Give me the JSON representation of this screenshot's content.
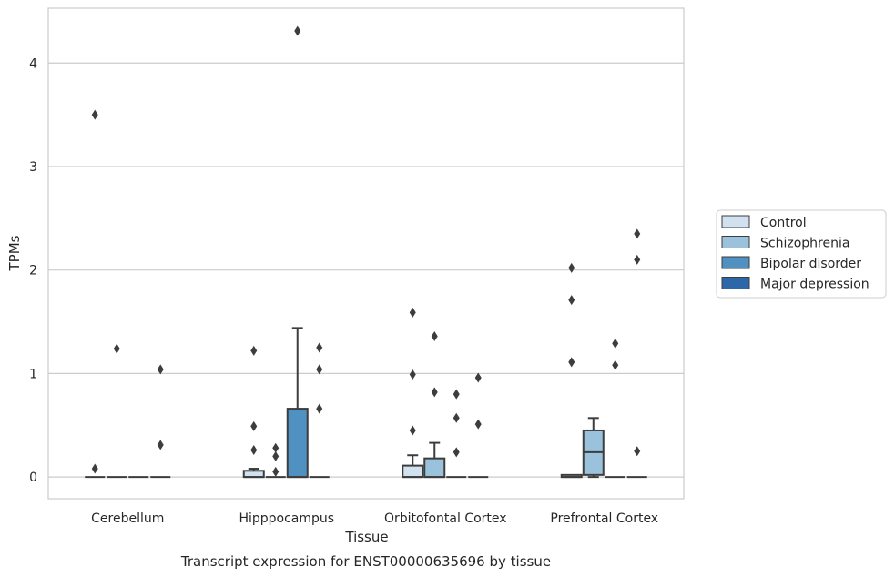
{
  "chart_data": {
    "type": "box",
    "title": "Transcript expression for ENST00000635696 by tissue",
    "xlabel": "Tissue",
    "ylabel": "TPMs",
    "ylim": [
      -0.21,
      4.53
    ],
    "yticks": [
      0,
      1,
      2,
      3,
      4
    ],
    "grid": "horizontal",
    "legend_position": "right",
    "categories": [
      "Cerebellum",
      "Hipppocampus",
      "Orbitofontal Cortex",
      "Prefrontal Cortex"
    ],
    "series": [
      {
        "name": "Control",
        "color": "#d1e1ef",
        "boxes": [
          {
            "category": "Cerebellum",
            "whislo": 0,
            "q1": 0,
            "med": 0,
            "q3": 0,
            "whishi": 0,
            "fliers": [
              0.08,
              3.5
            ]
          },
          {
            "category": "Hipppocampus",
            "whislo": 0,
            "q1": 0,
            "med": 0,
            "q3": 0.06,
            "whishi": 0.08,
            "fliers": [
              0.26,
              0.49,
              1.22
            ]
          },
          {
            "category": "Orbitofontal Cortex",
            "whislo": 0,
            "q1": 0,
            "med": 0,
            "q3": 0.11,
            "whishi": 0.21,
            "fliers": [
              0.45,
              0.99,
              1.59
            ]
          },
          {
            "category": "Prefrontal Cortex",
            "whislo": 0,
            "q1": 0,
            "med": 0,
            "q3": 0.02,
            "whishi": 0.02,
            "fliers": [
              1.11,
              1.71,
              2.02
            ]
          }
        ]
      },
      {
        "name": "Schizophrenia",
        "color": "#9ac2dc",
        "boxes": [
          {
            "category": "Cerebellum",
            "whislo": 0,
            "q1": 0,
            "med": 0,
            "q3": 0,
            "whishi": 0,
            "fliers": [
              1.24
            ]
          },
          {
            "category": "Hipppocampus",
            "whislo": 0,
            "q1": 0,
            "med": 0,
            "q3": 0,
            "whishi": 0,
            "fliers": [
              0.05,
              0.2,
              0.28
            ]
          },
          {
            "category": "Orbitofontal Cortex",
            "whislo": 0,
            "q1": 0,
            "med": 0,
            "q3": 0.18,
            "whishi": 0.33,
            "fliers": [
              0.82,
              1.36
            ]
          },
          {
            "category": "Prefrontal Cortex",
            "whislo": 0,
            "q1": 0.02,
            "med": 0.24,
            "q3": 0.45,
            "whishi": 0.57,
            "fliers": []
          }
        ]
      },
      {
        "name": "Bipolar disorder",
        "color": "#4f91c1",
        "boxes": [
          {
            "category": "Cerebellum",
            "whislo": 0,
            "q1": 0,
            "med": 0,
            "q3": 0,
            "whishi": 0,
            "fliers": []
          },
          {
            "category": "Hipppocampus",
            "whislo": 0,
            "q1": 0,
            "med": 0,
            "q3": 0.66,
            "whishi": 1.44,
            "fliers": [
              4.31
            ]
          },
          {
            "category": "Orbitofontal Cortex",
            "whislo": 0,
            "q1": 0,
            "med": 0,
            "q3": 0,
            "whishi": 0,
            "fliers": [
              0.24,
              0.57,
              0.8
            ]
          },
          {
            "category": "Prefrontal Cortex",
            "whislo": 0,
            "q1": 0,
            "med": 0,
            "q3": 0,
            "whishi": 0,
            "fliers": [
              1.08,
              1.29
            ]
          }
        ]
      },
      {
        "name": "Major depression",
        "color": "#2c67a9",
        "boxes": [
          {
            "category": "Cerebellum",
            "whislo": 0,
            "q1": 0,
            "med": 0,
            "q3": 0,
            "whishi": 0,
            "fliers": [
              0.31,
              1.04
            ]
          },
          {
            "category": "Hipppocampus",
            "whislo": 0,
            "q1": 0,
            "med": 0,
            "q3": 0,
            "whishi": 0,
            "fliers": [
              0.66,
              1.04,
              1.25
            ]
          },
          {
            "category": "Orbitofontal Cortex",
            "whislo": 0,
            "q1": 0,
            "med": 0,
            "q3": 0,
            "whishi": 0,
            "fliers": [
              0.51,
              0.96
            ]
          },
          {
            "category": "Prefrontal Cortex",
            "whislo": 0,
            "q1": 0,
            "med": 0,
            "q3": 0,
            "whishi": 0,
            "fliers": [
              0.25,
              2.1,
              2.35
            ]
          }
        ]
      }
    ]
  }
}
